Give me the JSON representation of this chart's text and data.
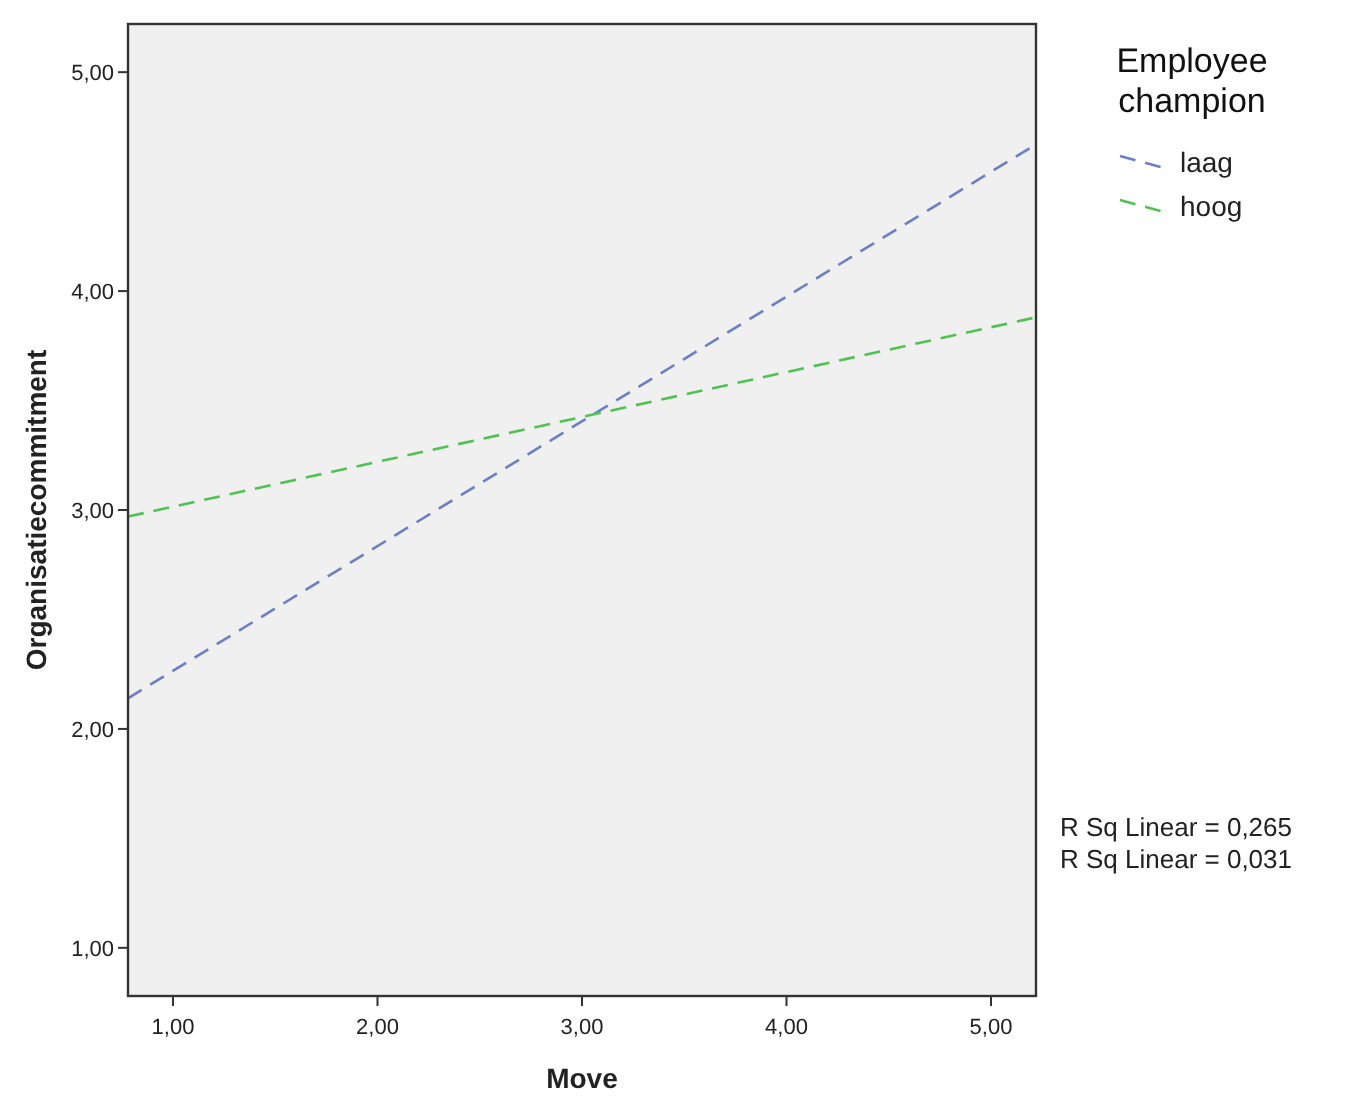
{
  "chart_data": {
    "type": "line",
    "xlabel": "Move",
    "ylabel": "Organisatiecommitment",
    "legend_title": "Employee champion",
    "legend": "top right",
    "grid": false,
    "marker": "none",
    "x": [
      0.78,
      5.22
    ],
    "xlim": [
      0.78,
      5.22
    ],
    "ylim": [
      0.78,
      5.22
    ],
    "xticks": [
      {
        "value": 1,
        "label": "1,00"
      },
      {
        "value": 2,
        "label": "2,00"
      },
      {
        "value": 3,
        "label": "3,00"
      },
      {
        "value": 4,
        "label": "4,00"
      },
      {
        "value": 5,
        "label": "5,00"
      }
    ],
    "yticks": [
      {
        "value": 1,
        "label": "1,00"
      },
      {
        "value": 2,
        "label": "2,00"
      },
      {
        "value": 3,
        "label": "3,00"
      },
      {
        "value": 4,
        "label": "4,00"
      },
      {
        "value": 5,
        "label": "5,00"
      }
    ],
    "series": [
      {
        "name": "laag",
        "color": "#6b7fc4",
        "line_style": "dashed",
        "values": [
          2.14,
          4.67
        ]
      },
      {
        "name": "hoog",
        "color": "#4fc251",
        "line_style": "dashed",
        "values": [
          2.97,
          3.88
        ]
      }
    ],
    "annotations": [
      "R Sq Linear = 0,265",
      "R Sq Linear = 0,031"
    ]
  }
}
